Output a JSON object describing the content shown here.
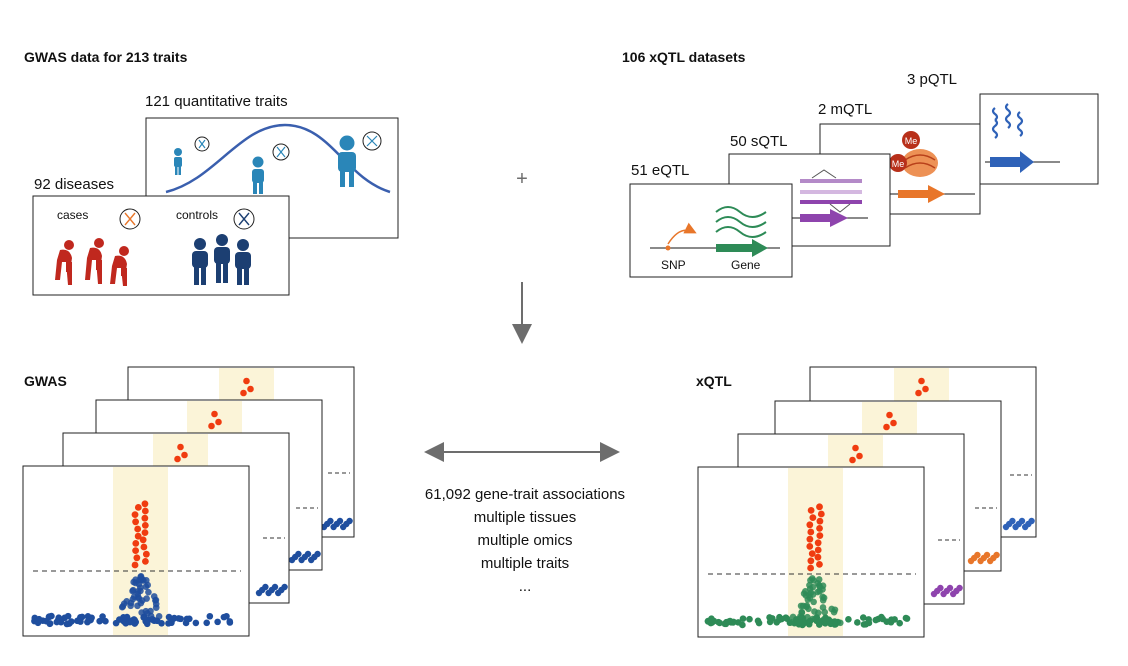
{
  "titles": {
    "gwas_data": "GWAS data for 213 traits",
    "xqtl_datasets": "106 xQTL datasets"
  },
  "gwas_inputs": {
    "quantitative": "121 quantitative traits",
    "diseases": "92 diseases",
    "cases": "cases",
    "controls": "controls"
  },
  "xqtl_inputs": {
    "pqtl": "3 pQTL",
    "mqtl": "2 mQTL",
    "sqtl": "50 sQTL",
    "eqtl": "51 eQTL",
    "snp": "SNP",
    "gene": "Gene",
    "methyl_tag": "Me"
  },
  "symbols": {
    "plus": "+"
  },
  "plots": {
    "gwas_label": "GWAS",
    "xqtl_label": "xQTL"
  },
  "summary": {
    "line1": "61,092 gene-trait associations",
    "line2": "multiple tissues",
    "line3": "multiple omics",
    "line4": "multiple traits",
    "line5": "..."
  },
  "colors": {
    "gwas_blue": "#1f4e9e",
    "sig_red": "#f03c10",
    "band_yellow": "#fbf4d8",
    "person_blue": "#2a86b8",
    "disease_red": "#c0281e",
    "control_navy": "#1c3f72",
    "eqtl_green": "#2e8b57",
    "sqtl_purple": "#8e44ad",
    "mqtl_orange": "#e8762a",
    "pqtl_blue": "#2f62b8"
  }
}
